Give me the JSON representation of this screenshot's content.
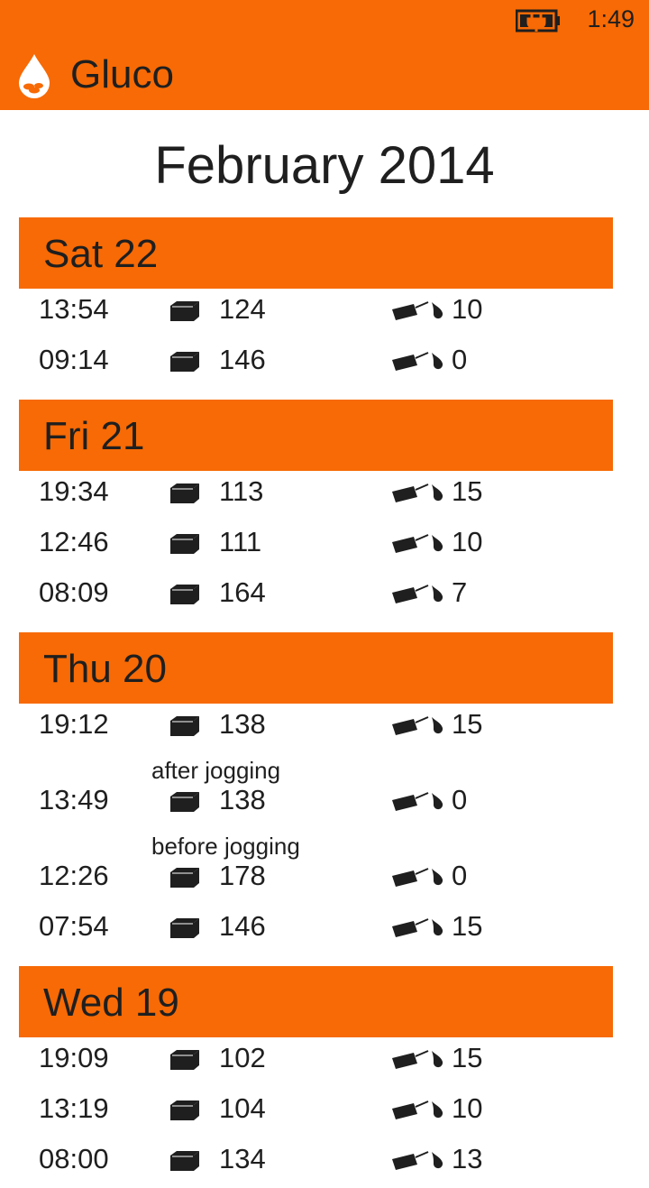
{
  "status": {
    "time": "1:49"
  },
  "app": {
    "title": "Gluco"
  },
  "month": "February 2014",
  "days": [
    {
      "label": "Sat 22",
      "entries": [
        {
          "time": "13:54",
          "glucose": "124",
          "insulin": "10"
        },
        {
          "time": "09:14",
          "glucose": "146",
          "insulin": "0"
        }
      ]
    },
    {
      "label": "Fri 21",
      "entries": [
        {
          "time": "19:34",
          "glucose": "113",
          "insulin": "15"
        },
        {
          "time": "12:46",
          "glucose": "111",
          "insulin": "10"
        },
        {
          "time": "08:09",
          "glucose": "164",
          "insulin": "7"
        }
      ]
    },
    {
      "label": "Thu 20",
      "entries": [
        {
          "time": "19:12",
          "glucose": "138",
          "insulin": "15"
        },
        {
          "time": "13:49",
          "glucose": "138",
          "insulin": "0",
          "note": "after jogging"
        },
        {
          "time": "12:26",
          "glucose": "178",
          "insulin": "0",
          "note": "before jogging"
        },
        {
          "time": "07:54",
          "glucose": "146",
          "insulin": "15"
        }
      ]
    },
    {
      "label": "Wed 19",
      "entries": [
        {
          "time": "19:09",
          "glucose": "102",
          "insulin": "15"
        },
        {
          "time": "13:19",
          "glucose": "104",
          "insulin": "10"
        },
        {
          "time": "08:00",
          "glucose": "134",
          "insulin": "13"
        }
      ]
    }
  ],
  "icons": {
    "battery": "battery-charging-icon",
    "logo": "blood-drop-icon",
    "glucose": "glucose-meter-icon",
    "insulin": "insulin-pen-icon"
  },
  "colors": {
    "accent": "#f76a05",
    "text": "#1f1f1f",
    "background": "#ffffff"
  }
}
